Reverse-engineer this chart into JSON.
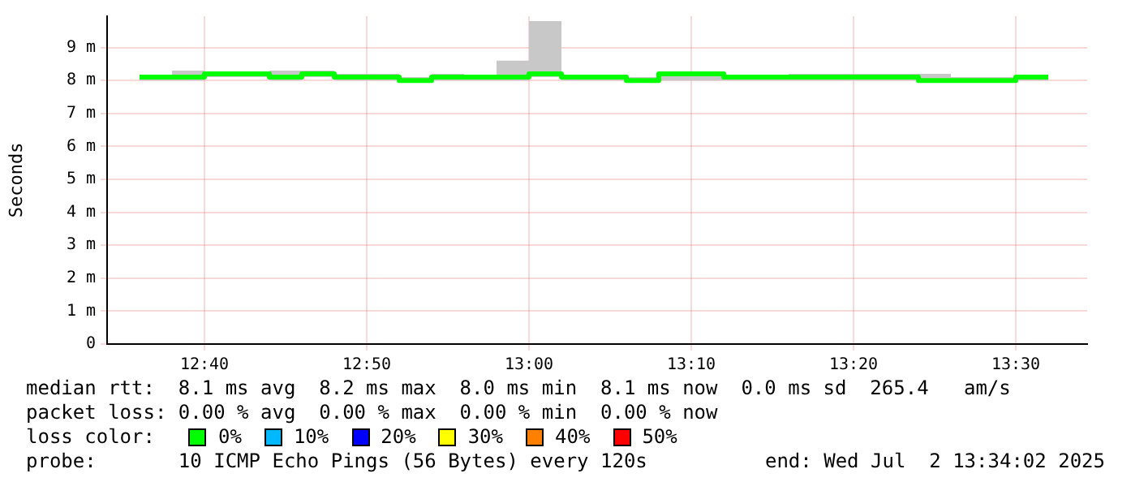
{
  "chart_data": {
    "type": "step",
    "ylabel": "Seconds",
    "x": [
      "2025-07-02T12:36",
      "2025-07-02T12:38",
      "2025-07-02T12:40",
      "2025-07-02T12:42",
      "2025-07-02T12:44",
      "2025-07-02T12:46",
      "2025-07-02T12:48",
      "2025-07-02T12:50",
      "2025-07-02T12:52",
      "2025-07-02T12:54",
      "2025-07-02T12:56",
      "2025-07-02T12:58",
      "2025-07-02T13:00",
      "2025-07-02T13:02",
      "2025-07-02T13:04",
      "2025-07-02T13:06",
      "2025-07-02T13:08",
      "2025-07-02T13:10",
      "2025-07-02T13:12",
      "2025-07-02T13:14",
      "2025-07-02T13:16",
      "2025-07-02T13:18",
      "2025-07-02T13:20",
      "2025-07-02T13:22",
      "2025-07-02T13:24",
      "2025-07-02T13:26",
      "2025-07-02T13:28",
      "2025-07-02T13:30",
      "2025-07-02T13:32"
    ],
    "series": [
      {
        "color": "#00ff00",
        "values": [
          8.1,
          8.1,
          8.2,
          8.2,
          8.1,
          8.2,
          8.1,
          8.1,
          8.0,
          8.1,
          8.1,
          8.1,
          8.2,
          8.1,
          8.1,
          8.0,
          8.2,
          8.2,
          8.1,
          8.1,
          8.1,
          8.1,
          8.1,
          8.1,
          8.0,
          8.0,
          8.0,
          8.1,
          8.1
        ],
        "lower": [
          8.0,
          8.0,
          8.1,
          8.1,
          8.0,
          8.1,
          8.0,
          8.0,
          8.0,
          8.0,
          8.0,
          8.0,
          8.1,
          8.0,
          8.0,
          8.0,
          8.0,
          8.0,
          8.0,
          8.0,
          8.0,
          8.0,
          8.0,
          8.0,
          8.0,
          8.0,
          8.0,
          8.0,
          8.0
        ],
        "upper": [
          8.1,
          8.3,
          8.2,
          8.2,
          8.3,
          8.3,
          8.2,
          8.2,
          8.1,
          8.2,
          8.1,
          8.6,
          9.8,
          8.1,
          8.1,
          8.1,
          8.2,
          8.2,
          8.1,
          8.1,
          8.2,
          8.2,
          8.2,
          8.2,
          8.2,
          8.1,
          8.1,
          8.1,
          8.1
        ]
      }
    ],
    "xlim": [
      "2025-07-02T12:34",
      "2025-07-02T13:34:24"
    ],
    "xticks": [
      {
        "value": "2025-07-02T12:40",
        "label": "12:40"
      },
      {
        "value": "2025-07-02T12:50",
        "label": "12:50"
      },
      {
        "value": "2025-07-02T13:00",
        "label": "13:00"
      },
      {
        "value": "2025-07-02T13:10",
        "label": "13:10"
      },
      {
        "value": "2025-07-02T13:20",
        "label": "13:20"
      },
      {
        "value": "2025-07-02T13:30",
        "label": "13:30"
      }
    ],
    "ylim": [
      0,
      9.95
    ],
    "yticks": [
      0,
      {
        "value": 1,
        "label": "1 m"
      },
      {
        "value": 2,
        "label": "2 m"
      },
      {
        "value": 3,
        "label": "3 m"
      },
      {
        "value": 4,
        "label": "4 m"
      },
      {
        "value": 5,
        "label": "5 m"
      },
      {
        "value": 6,
        "label": "6 m"
      },
      {
        "value": 7,
        "label": "7 m"
      },
      {
        "value": 8,
        "label": "8 m"
      },
      {
        "value": 9,
        "label": "9 m"
      }
    ],
    "grid": true,
    "annotations": [
      "median rtt:  8.1 ms avg  8.2 ms max  8.0 ms min  8.1 ms now  0.0 ms sd  265.4   am/s",
      "packet loss: 0.00 % avg  0.00 % max  0.00 % min  0.00 % now",
      "loss color:",
      "0%",
      "10%",
      "20%",
      "30%",
      "40%",
      "50%",
      "probe:       10 ICMP Echo Pings (56 Bytes) every 120s",
      "end: Wed Jul  2 13:34:02 2025"
    ]
  }
}
